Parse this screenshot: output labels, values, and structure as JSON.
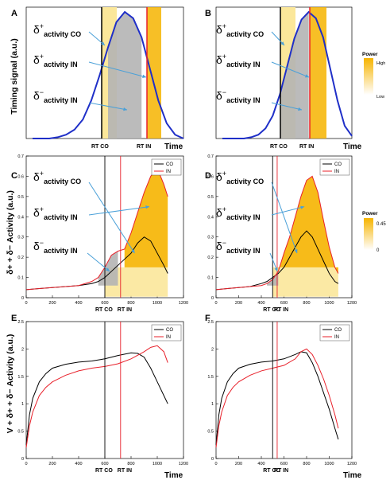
{
  "panels": [
    {
      "letter": "A",
      "ylabel": "Timing signal (a.u.)",
      "xlabel": "Time",
      "annotations": [
        "activity CO",
        "activity IN",
        "activity IN"
      ],
      "rt_labels": [
        "RT CO",
        "RT IN"
      ]
    },
    {
      "letter": "B",
      "xlabel": "Time",
      "annotations": [
        "activity CO",
        "activity IN",
        "activity IN"
      ],
      "rt_labels": [
        "RT CO",
        "RT IN"
      ]
    },
    {
      "letter": "C",
      "ylabel": "δ+ + δ− Activity (a.u.)",
      "xlabel": "",
      "annotations": [
        "activity CO",
        "activity IN",
        "activity IN"
      ],
      "rt_labels": [
        "RT CO",
        "RT IN"
      ]
    },
    {
      "letter": "D",
      "xlabel": "",
      "annotations": [
        "activity CO",
        "activity IN",
        "activity IN"
      ],
      "rt_labels": [
        "RT CO",
        "RT IN"
      ]
    },
    {
      "letter": "E",
      "ylabel": "V + δ+ + δ− Activity (a.u.)",
      "xlabel": "Time",
      "rt_labels": [
        "RT CO",
        "RT IN"
      ]
    },
    {
      "letter": "F",
      "xlabel": "Time",
      "rt_labels": [
        "RT CO",
        "RT IN"
      ]
    }
  ],
  "power_legend_top": {
    "title": "Power",
    "high": "High",
    "low": "Low"
  },
  "power_legend_mid": {
    "title": "Power",
    "high": "0.45",
    "low": "0"
  },
  "colors": {
    "co": "#000000",
    "in": "#e8202a",
    "blue": "#1f2fc8",
    "gold": "#f6b400",
    "pale": "#fbe79a",
    "grey": "#b4b4b4"
  },
  "chart_data": [
    {
      "panel": "A",
      "type": "line",
      "xlabel": "Time",
      "ylabel": "Timing signal (a.u.)",
      "series": [
        {
          "values": [
            0,
            0,
            0,
            0.01,
            0.03,
            0.07,
            0.15,
            0.3,
            0.5,
            0.72,
            0.92,
            1.0,
            0.95,
            0.8,
            0.55,
            0.3,
            0.12,
            0.03,
            0
          ]
        }
      ],
      "markers": [
        "RT CO",
        "RT IN"
      ]
    },
    {
      "panel": "B",
      "type": "line",
      "xlabel": "Time",
      "series": [
        {
          "values": [
            0,
            0,
            0,
            0,
            0.01,
            0.03,
            0.08,
            0.18,
            0.35,
            0.57,
            0.79,
            0.94,
            1.0,
            0.95,
            0.8,
            0.55,
            0.3,
            0.1,
            0.02
          ]
        }
      ],
      "markers": [
        "RT CO",
        "RT IN"
      ]
    },
    {
      "panel": "C",
      "type": "line",
      "ylabel": "δ+ + δ− Activity (a.u.)",
      "ylim": [
        0,
        0.7
      ],
      "xlim": [
        0,
        1200
      ],
      "yticks": [
        0,
        0.1,
        0.2,
        0.3,
        0.4,
        0.5,
        0.6,
        0.7
      ],
      "xticks": [
        0,
        200,
        400,
        600,
        800,
        1000,
        1200
      ],
      "series": [
        {
          "name": "CO",
          "x": [
            0,
            100,
            200,
            300,
            400,
            500,
            550,
            600,
            650,
            700,
            750,
            800,
            850,
            900,
            950,
            1000,
            1050,
            1080
          ],
          "y": [
            0.04,
            0.045,
            0.05,
            0.055,
            0.06,
            0.07,
            0.08,
            0.1,
            0.13,
            0.16,
            0.19,
            0.22,
            0.27,
            0.3,
            0.28,
            0.22,
            0.16,
            0.12
          ]
        },
        {
          "name": "IN",
          "x": [
            0,
            100,
            200,
            300,
            400,
            500,
            550,
            600,
            650,
            700,
            750,
            800,
            850,
            900,
            950,
            1000,
            1050,
            1080
          ],
          "y": [
            0.04,
            0.045,
            0.05,
            0.055,
            0.06,
            0.08,
            0.1,
            0.15,
            0.21,
            0.23,
            0.24,
            0.32,
            0.42,
            0.52,
            0.6,
            0.64,
            0.56,
            0.5
          ]
        }
      ],
      "markers": [
        {
          "label": "RT CO",
          "x": 600
        },
        {
          "label": "RT IN",
          "x": 720
        }
      ]
    },
    {
      "panel": "D",
      "type": "line",
      "ylim": [
        0,
        0.7
      ],
      "xlim": [
        0,
        1200
      ],
      "yticks": [
        0,
        0.1,
        0.2,
        0.3,
        0.4,
        0.5,
        0.6,
        0.7
      ],
      "xticks": [
        0,
        200,
        400,
        600,
        800,
        1000,
        1200
      ],
      "series": [
        {
          "name": "CO",
          "x": [
            0,
            100,
            200,
            300,
            400,
            450,
            500,
            550,
            600,
            650,
            700,
            750,
            800,
            850,
            900,
            950,
            1000,
            1050,
            1080
          ],
          "y": [
            0.04,
            0.045,
            0.05,
            0.055,
            0.07,
            0.08,
            0.1,
            0.12,
            0.15,
            0.2,
            0.25,
            0.3,
            0.33,
            0.3,
            0.24,
            0.18,
            0.12,
            0.08,
            0.07
          ]
        },
        {
          "name": "IN",
          "x": [
            0,
            100,
            200,
            300,
            400,
            450,
            500,
            550,
            600,
            650,
            700,
            750,
            800,
            850,
            900,
            950,
            1000,
            1050,
            1080
          ],
          "y": [
            0.04,
            0.045,
            0.05,
            0.055,
            0.06,
            0.07,
            0.09,
            0.13,
            0.22,
            0.3,
            0.4,
            0.5,
            0.58,
            0.6,
            0.52,
            0.38,
            0.25,
            0.15,
            0.12
          ]
        }
      ],
      "markers": [
        {
          "label": "RT CO",
          "x": 500
        },
        {
          "label": "RT IN",
          "x": 540
        }
      ]
    },
    {
      "panel": "E",
      "type": "line",
      "ylabel": "V + δ+ + δ− Activity (a.u.)",
      "xlabel": "Time",
      "ylim": [
        0,
        2.5
      ],
      "xlim": [
        0,
        1200
      ],
      "yticks": [
        0,
        0.5,
        1,
        1.5,
        2,
        2.5
      ],
      "xticks": [
        0,
        200,
        400,
        600,
        800,
        1000,
        1200
      ],
      "series": [
        {
          "name": "CO",
          "x": [
            0,
            25,
            50,
            100,
            150,
            200,
            300,
            400,
            500,
            600,
            700,
            800,
            850,
            900,
            950,
            1000,
            1050,
            1080
          ],
          "y": [
            0.25,
            0.8,
            1.1,
            1.4,
            1.55,
            1.65,
            1.72,
            1.76,
            1.78,
            1.82,
            1.88,
            1.93,
            1.92,
            1.85,
            1.65,
            1.4,
            1.15,
            1.0
          ]
        },
        {
          "name": "IN",
          "x": [
            0,
            25,
            50,
            100,
            150,
            200,
            300,
            400,
            500,
            600,
            700,
            800,
            900,
            950,
            1000,
            1050,
            1080
          ],
          "y": [
            0.2,
            0.6,
            0.85,
            1.15,
            1.3,
            1.4,
            1.52,
            1.6,
            1.65,
            1.68,
            1.73,
            1.82,
            1.95,
            2.03,
            2.06,
            1.95,
            1.75
          ]
        }
      ],
      "markers": [
        {
          "label": "RT CO",
          "x": 600
        },
        {
          "label": "RT IN",
          "x": 720
        }
      ]
    },
    {
      "panel": "F",
      "type": "line",
      "xlabel": "Time",
      "ylim": [
        0,
        2.5
      ],
      "xlim": [
        0,
        1200
      ],
      "yticks": [
        0,
        0.5,
        1,
        1.5,
        2,
        2.5
      ],
      "xticks": [
        0,
        200,
        400,
        600,
        800,
        1000,
        1200
      ],
      "series": [
        {
          "name": "CO",
          "x": [
            0,
            25,
            50,
            100,
            150,
            200,
            300,
            400,
            500,
            600,
            700,
            750,
            800,
            850,
            900,
            950,
            1000,
            1050,
            1080
          ],
          "y": [
            0.25,
            0.8,
            1.1,
            1.4,
            1.55,
            1.65,
            1.72,
            1.76,
            1.78,
            1.82,
            1.9,
            1.95,
            1.93,
            1.75,
            1.5,
            1.2,
            0.9,
            0.55,
            0.35
          ]
        },
        {
          "name": "IN",
          "x": [
            0,
            25,
            50,
            100,
            150,
            200,
            300,
            400,
            500,
            600,
            700,
            750,
            800,
            850,
            900,
            950,
            1000,
            1050,
            1080
          ],
          "y": [
            0.2,
            0.6,
            0.85,
            1.15,
            1.3,
            1.4,
            1.52,
            1.6,
            1.65,
            1.7,
            1.82,
            1.95,
            2.0,
            1.9,
            1.7,
            1.45,
            1.15,
            0.8,
            0.55
          ]
        }
      ],
      "markers": [
        {
          "label": "RT CO",
          "x": 500
        },
        {
          "label": "RT IN",
          "x": 540
        }
      ]
    }
  ]
}
